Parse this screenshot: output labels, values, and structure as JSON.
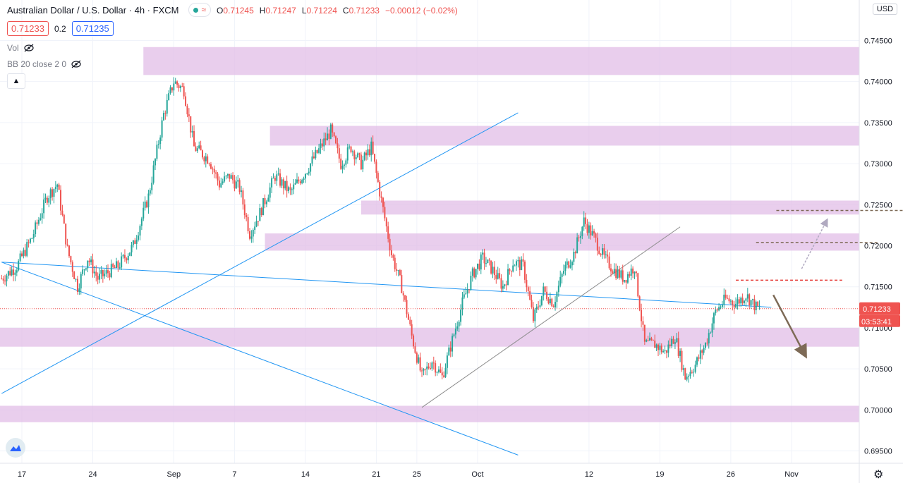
{
  "header": {
    "title": "Australian Dollar / U.S. Dollar · 4h · FXCM",
    "ohlc": [
      {
        "k": "O",
        "v": "0.71245"
      },
      {
        "k": "H",
        "v": "0.71247"
      },
      {
        "k": "L",
        "v": "0.71224"
      },
      {
        "k": "C",
        "v": "0.71233"
      },
      {
        "k": "",
        "v": "−0.00012 (−0.02%)"
      }
    ],
    "sell_price": "0.71233",
    "spread": "0.2",
    "buy_price": "0.71235"
  },
  "indicators": {
    "vol_label": "Vol",
    "bb_label": "BB 20 close 2 0"
  },
  "currency": "USD",
  "price_axis": {
    "last_price": "0.71233",
    "countdown": "03:53:41"
  },
  "colors": {
    "up": "#26a69a",
    "down": "#ef5350",
    "zone": "#e1bee7",
    "trendline": "#2196f3",
    "last_price": "#ef5350",
    "arrow": "#7d6a56"
  },
  "chart_data": {
    "type": "candlestick",
    "symbol": "AUDUSD",
    "interval": "4h",
    "ylim": [
      0.6935,
      0.7465
    ],
    "y_ticks": [
      "0.74500",
      "0.74000",
      "0.73500",
      "0.73000",
      "0.72500",
      "0.72000",
      "0.71500",
      "0.71000",
      "0.70500",
      "0.70000",
      "0.69500"
    ],
    "x_ticks": [
      {
        "label": "17",
        "day": 17
      },
      {
        "label": "24",
        "day": 24
      },
      {
        "label": "Sep",
        "day": 32
      },
      {
        "label": "7",
        "day": 38
      },
      {
        "label": "14",
        "day": 45
      },
      {
        "label": "21",
        "day": 52
      },
      {
        "label": "25",
        "day": 56
      },
      {
        "label": "Oct",
        "day": 62
      },
      {
        "label": "12",
        "day": 73
      },
      {
        "label": "19",
        "day": 80
      },
      {
        "label": "26",
        "day": 87
      },
      {
        "label": "Nov",
        "day": 93
      }
    ],
    "day_range": [
      15.0,
      100.0
    ],
    "path": [
      [
        15.0,
        0.716
      ],
      [
        16.5,
        0.7175
      ],
      [
        18.0,
        0.721
      ],
      [
        19.5,
        0.726
      ],
      [
        20.5,
        0.7275
      ],
      [
        21.5,
        0.7195
      ],
      [
        22.5,
        0.715
      ],
      [
        23.5,
        0.7185
      ],
      [
        24.5,
        0.716
      ],
      [
        26.5,
        0.7175
      ],
      [
        28.0,
        0.72
      ],
      [
        29.5,
        0.726
      ],
      [
        31.0,
        0.736
      ],
      [
        32.0,
        0.74
      ],
      [
        33.0,
        0.739
      ],
      [
        34.0,
        0.732
      ],
      [
        35.5,
        0.7305
      ],
      [
        36.5,
        0.7275
      ],
      [
        37.5,
        0.7285
      ],
      [
        38.5,
        0.727
      ],
      [
        39.5,
        0.7215
      ],
      [
        40.5,
        0.724
      ],
      [
        42.0,
        0.7285
      ],
      [
        43.5,
        0.7265
      ],
      [
        45.0,
        0.729
      ],
      [
        46.5,
        0.732
      ],
      [
        47.5,
        0.734
      ],
      [
        48.5,
        0.73
      ],
      [
        49.5,
        0.732
      ],
      [
        50.5,
        0.73
      ],
      [
        51.5,
        0.732
      ],
      [
        52.5,
        0.7255
      ],
      [
        53.5,
        0.719
      ],
      [
        54.5,
        0.715
      ],
      [
        55.5,
        0.709
      ],
      [
        56.5,
        0.704
      ],
      [
        57.5,
        0.706
      ],
      [
        58.5,
        0.704
      ],
      [
        59.5,
        0.7085
      ],
      [
        60.5,
        0.713
      ],
      [
        61.5,
        0.7165
      ],
      [
        62.5,
        0.7185
      ],
      [
        63.5,
        0.717
      ],
      [
        64.5,
        0.715
      ],
      [
        65.5,
        0.718
      ],
      [
        66.5,
        0.7175
      ],
      [
        67.5,
        0.711
      ],
      [
        68.5,
        0.7145
      ],
      [
        69.5,
        0.713
      ],
      [
        70.5,
        0.717
      ],
      [
        71.5,
        0.719
      ],
      [
        72.5,
        0.723
      ],
      [
        73.5,
        0.721
      ],
      [
        74.5,
        0.7185
      ],
      [
        75.5,
        0.717
      ],
      [
        76.5,
        0.716
      ],
      [
        77.5,
        0.7175
      ],
      [
        78.5,
        0.708
      ],
      [
        79.5,
        0.708
      ],
      [
        80.5,
        0.707
      ],
      [
        81.5,
        0.709
      ],
      [
        82.5,
        0.704
      ],
      [
        83.5,
        0.7055
      ],
      [
        84.5,
        0.708
      ],
      [
        85.5,
        0.712
      ],
      [
        86.5,
        0.7135
      ],
      [
        87.5,
        0.713
      ],
      [
        88.5,
        0.714
      ],
      [
        89.5,
        0.7125
      ],
      [
        90.0,
        0.7123
      ]
    ],
    "zones": [
      [
        0.7408,
        0.7442
      ],
      [
        0.7322,
        0.7346
      ],
      [
        0.7238,
        0.7255
      ],
      [
        0.7194,
        0.7215
      ],
      [
        0.7077,
        0.71
      ],
      [
        0.6985,
        0.7005
      ]
    ],
    "levels": {
      "last_price": 0.71233,
      "resistance_dashed": 0.7158,
      "target_1": 0.7204,
      "target_2": 0.7243
    },
    "trendlines": [
      {
        "from": [
          15.0,
          0.718
        ],
        "to": [
          91.0,
          0.7125
        ]
      },
      {
        "from": [
          15.0,
          0.718
        ],
        "to": [
          66.0,
          0.6945
        ]
      },
      {
        "from": [
          15.0,
          0.702
        ],
        "to": [
          66.0,
          0.7362
        ]
      },
      {
        "from": [
          56.5,
          0.7003
        ],
        "to": [
          82.0,
          0.7223
        ]
      }
    ]
  }
}
